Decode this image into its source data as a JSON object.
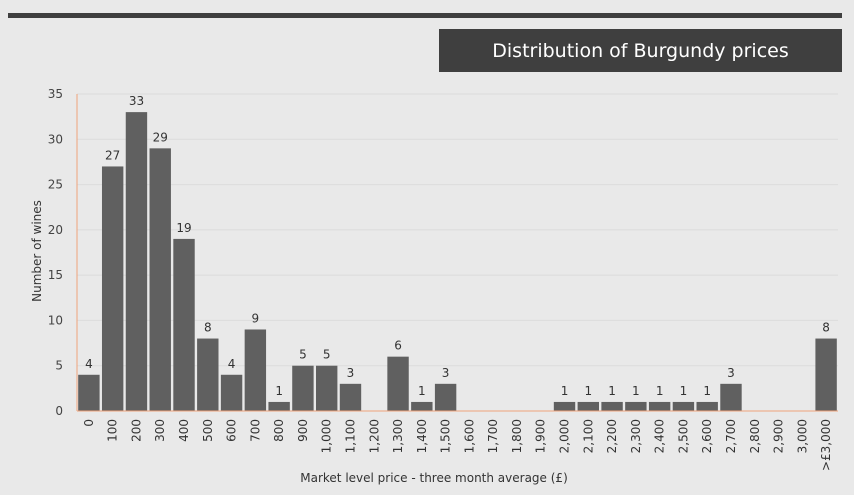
{
  "chart_data": {
    "type": "bar",
    "title": "Distribution of Burgundy prices",
    "xlabel": "Market level price - three month average (£)",
    "ylabel": "Number of wines",
    "ylim": [
      0,
      35
    ],
    "yticks": [
      "0",
      "5",
      "10",
      "15",
      "20",
      "25",
      "30",
      "35"
    ],
    "grid": true,
    "categories": [
      "0",
      "100",
      "200",
      "300",
      "400",
      "500",
      "600",
      "700",
      "800",
      "900",
      "1,000",
      "1,100",
      "1,200",
      "1,300",
      "1,400",
      "1,500",
      "1,600",
      "1,700",
      "1,800",
      "1,900",
      "2,000",
      "2,100",
      "2,200",
      "2,300",
      "2,400",
      "2,500",
      "2,600",
      "2,700",
      "2,800",
      "2,900",
      "3,000",
      ">£3,000"
    ],
    "values": [
      4,
      27,
      33,
      29,
      19,
      8,
      4,
      9,
      1,
      5,
      5,
      3,
      0,
      6,
      1,
      3,
      0,
      0,
      0,
      0,
      1,
      1,
      1,
      1,
      1,
      1,
      1,
      3,
      0,
      0,
      0,
      8
    ],
    "bar_color": "#606060",
    "axis_color": "#f0a27a"
  }
}
